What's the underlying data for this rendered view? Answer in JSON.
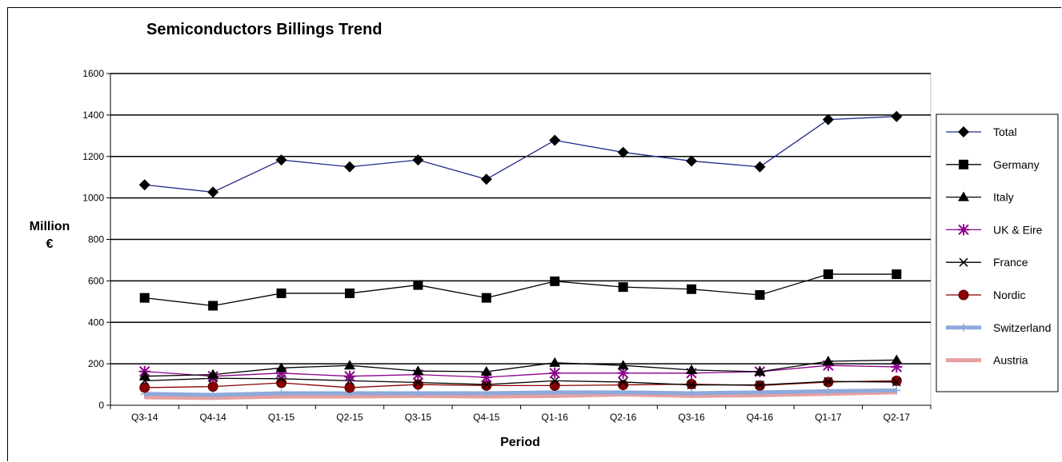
{
  "chart_data": {
    "type": "line",
    "title": "Semiconductors Billings Trend",
    "xlabel": "Period",
    "ylabel_line1": "Million",
    "ylabel_line2": "€",
    "categories": [
      "Q3-14",
      "Q4-14",
      "Q1-15",
      "Q2-15",
      "Q3-15",
      "Q4-15",
      "Q1-16",
      "Q2-16",
      "Q3-16",
      "Q4-16",
      "Q1-17",
      "Q2-17"
    ],
    "ylim": [
      0,
      1600
    ],
    "yticks": [
      "0",
      "200",
      "400",
      "600",
      "800",
      "1000",
      "1200",
      "1400",
      "1600"
    ],
    "grid": true,
    "legend_position": "right",
    "series": [
      {
        "name": "Total",
        "color": "#1F2A8C",
        "marker": "diamond",
        "values": [
          1063,
          1028,
          1183,
          1150,
          1183,
          1090,
          1278,
          1220,
          1178,
          1150,
          1378,
          1393
        ]
      },
      {
        "name": "Germany",
        "color": "#000000",
        "marker": "square",
        "values": [
          518,
          480,
          540,
          540,
          580,
          518,
          598,
          570,
          560,
          532,
          632,
          632
        ]
      },
      {
        "name": "Italy",
        "color": "#000000",
        "marker": "triangle",
        "values": [
          140,
          148,
          180,
          192,
          165,
          162,
          205,
          192,
          170,
          162,
          212,
          218
        ]
      },
      {
        "name": "UK & Eire",
        "color": "#8B008B",
        "marker": "star",
        "values": [
          163,
          140,
          155,
          140,
          148,
          135,
          155,
          155,
          155,
          162,
          192,
          185
        ]
      },
      {
        "name": "France",
        "color": "#000000",
        "marker": "x",
        "values": [
          118,
          130,
          128,
          118,
          110,
          100,
          118,
          112,
          98,
          98,
          115,
          112
        ]
      },
      {
        "name": "Nordic",
        "color": "#8B0000",
        "marker": "circle",
        "values": [
          85,
          90,
          108,
          85,
          100,
          95,
          95,
          98,
          102,
          95,
          112,
          118
        ]
      },
      {
        "name": "Switzerland",
        "color": "#8EA9DB",
        "marker": "plus",
        "values": [
          55,
          50,
          58,
          58,
          58,
          58,
          62,
          62,
          58,
          62,
          68,
          72
        ]
      },
      {
        "name": "Austria",
        "color": "#E6A0A0",
        "marker": "none",
        "values": [
          38,
          35,
          42,
          42,
          45,
          42,
          45,
          52,
          45,
          48,
          55,
          62
        ]
      }
    ]
  }
}
